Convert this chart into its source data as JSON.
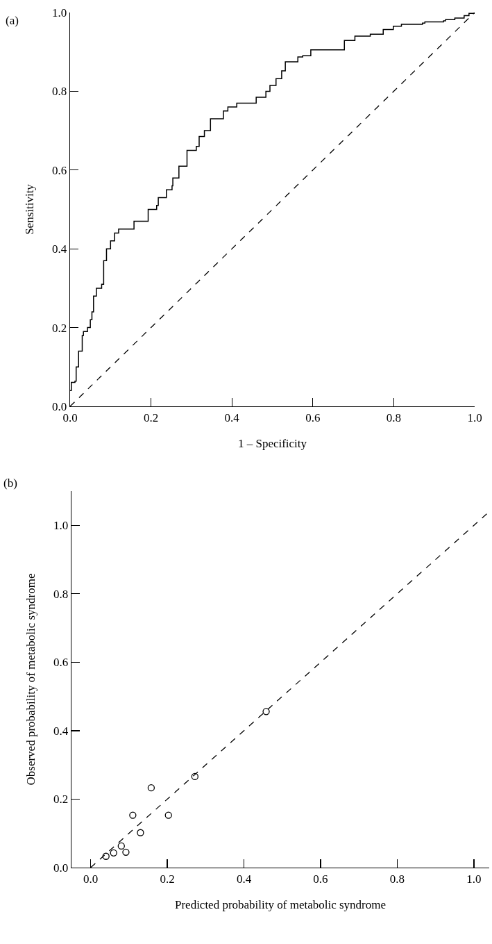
{
  "chart_data": [
    {
      "type": "step",
      "xlabel": "1 – Specificity",
      "ylabel": "Sensitivity",
      "annotations": [
        "(a)"
      ],
      "xlim": [
        0,
        1
      ],
      "ylim": [
        0,
        1
      ],
      "xticks": [
        {
          "value": 0,
          "label": "0.0"
        },
        {
          "value": 0.2,
          "label": "0.2"
        },
        {
          "value": 0.4,
          "label": "0.4"
        },
        {
          "value": 0.6,
          "label": "0.6"
        },
        {
          "value": 0.8,
          "label": "0.8"
        },
        {
          "value": 1,
          "label": "1.0"
        }
      ],
      "yticks": [
        {
          "value": 0,
          "label": "0.0"
        },
        {
          "value": 0.2,
          "label": "0.2"
        },
        {
          "value": 0.4,
          "label": "0.4"
        },
        {
          "value": 0.6,
          "label": "0.6"
        },
        {
          "value": 0.8,
          "label": "0.8"
        },
        {
          "value": 1,
          "label": "1.0"
        }
      ],
      "grid": false,
      "marker": "none",
      "series": [
        {
          "color": "#000000",
          "line_style": "solid",
          "x": [
            0,
            0.003,
            0.012,
            0.015,
            0.021,
            0.03,
            0.033,
            0.043,
            0.05,
            0.054,
            0.058,
            0.065,
            0.078,
            0.083,
            0.09,
            0.1,
            0.11,
            0.12,
            0.15,
            0.158,
            0.184,
            0.193,
            0.214,
            0.218,
            0.238,
            0.252,
            0.254,
            0.269,
            0.289,
            0.312,
            0.319,
            0.332,
            0.347,
            0.36,
            0.379,
            0.39,
            0.412,
            0.453,
            0.46,
            0.484,
            0.494,
            0.509,
            0.523,
            0.532,
            0.555,
            0.563,
            0.575,
            0.595,
            0.67,
            0.678,
            0.704,
            0.742,
            0.765,
            0.774,
            0.799,
            0.819,
            0.871,
            0.877,
            0.923,
            0.928,
            0.951,
            0.974,
            0.986,
            1.0
          ],
          "values": [
            0.04,
            0.061,
            0.064,
            0.1,
            0.14,
            0.18,
            0.19,
            0.2,
            0.22,
            0.24,
            0.28,
            0.3,
            0.31,
            0.37,
            0.4,
            0.42,
            0.44,
            0.45,
            0.45,
            0.47,
            0.47,
            0.5,
            0.51,
            0.53,
            0.55,
            0.56,
            0.58,
            0.61,
            0.65,
            0.66,
            0.685,
            0.7,
            0.73,
            0.73,
            0.75,
            0.76,
            0.77,
            0.77,
            0.785,
            0.8,
            0.815,
            0.832,
            0.852,
            0.875,
            0.875,
            0.887,
            0.89,
            0.905,
            0.905,
            0.929,
            0.94,
            0.945,
            0.945,
            0.957,
            0.965,
            0.97,
            0.973,
            0.976,
            0.979,
            0.982,
            0.986,
            0.992,
            0.998,
            1.0
          ]
        },
        {
          "type": "line",
          "color": "#000000",
          "line_style": "dashed",
          "x": [
            0,
            1
          ],
          "values": [
            0,
            1
          ]
        }
      ]
    },
    {
      "type": "scatter",
      "xlabel": "Predicted probability of metabolic syndrome",
      "ylabel": "Observed probability of metabolic syndrome",
      "annotations": [
        "(b)"
      ],
      "xlim": [
        -0.05,
        1.04
      ],
      "ylim": [
        0,
        1.1
      ],
      "xticks": [
        {
          "value": 0,
          "label": "0.0"
        },
        {
          "value": 0.2,
          "label": "0.2"
        },
        {
          "value": 0.4,
          "label": "0.4"
        },
        {
          "value": 0.6,
          "label": "0.6"
        },
        {
          "value": 0.8,
          "label": "0.8"
        },
        {
          "value": 1,
          "label": "1.0"
        }
      ],
      "yticks": [
        {
          "value": 0,
          "label": "0.0"
        },
        {
          "value": 0.2,
          "label": "0.2"
        },
        {
          "value": 0.4,
          "label": "0.4"
        },
        {
          "value": 0.6,
          "label": "0.6"
        },
        {
          "value": 0.8,
          "label": "0.8"
        },
        {
          "value": 1,
          "label": "1.0"
        }
      ],
      "grid": false,
      "marker": "circle",
      "series": [
        {
          "color": "#000000",
          "x": [
            0.04,
            0.06,
            0.08,
            0.092,
            0.11,
            0.13,
            0.158,
            0.203,
            0.272,
            0.458
          ],
          "values": [
            0.033,
            0.043,
            0.063,
            0.045,
            0.153,
            0.102,
            0.233,
            0.153,
            0.266,
            0.456
          ]
        },
        {
          "type": "line",
          "color": "#000000",
          "line_style": "dashed",
          "marker": "none",
          "x": [
            0,
            1.04
          ],
          "values": [
            0,
            1.04
          ]
        }
      ]
    }
  ]
}
